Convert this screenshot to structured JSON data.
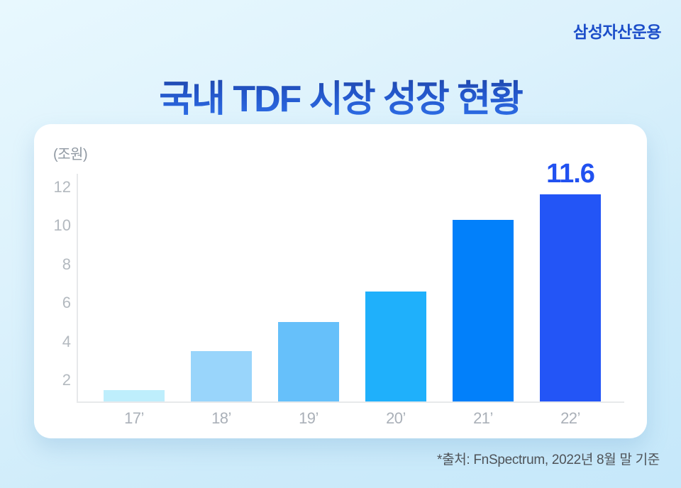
{
  "header": {
    "logo": "삼성자산운용",
    "title": "국내 TDF 시장 성장 현황"
  },
  "footer": {
    "source_note": "*출처: FnSpectrum, 2022년 8월 말 기준"
  },
  "chart_data": {
    "type": "bar",
    "title": "국내 TDF 시장 성장 현황",
    "unit_label": "(조원)",
    "categories": [
      "17’",
      "18’",
      "19’",
      "20’",
      "21’",
      "22’"
    ],
    "values": [
      1.5,
      3.5,
      5.0,
      6.6,
      10.3,
      11.6
    ],
    "value_labels": [
      null,
      null,
      null,
      null,
      null,
      "11.6"
    ],
    "bar_colors": [
      "#beeefc",
      "#99d5fb",
      "#66c0fa",
      "#1fb0fb",
      "#0280fa",
      "#2355f6"
    ],
    "y_ticks": [
      2,
      4,
      6,
      8,
      10,
      12
    ],
    "ylim": [
      0,
      12
    ],
    "grid": false,
    "legend": null,
    "colors": {
      "title_gradient_top": "#1f419e",
      "title_gradient_bottom": "#2f6fe8",
      "logo_blue": "#1c4ec9",
      "value_label_blue": "#2151f0",
      "axis_gray": "#e7e9eb",
      "tick_text_gray": "#b3b9bf",
      "card_background": "#ffffff"
    }
  }
}
